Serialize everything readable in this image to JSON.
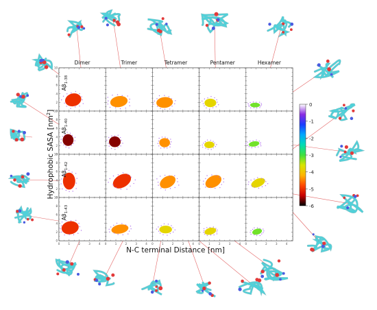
{
  "chart_data": {
    "type": "heatmap",
    "title": "",
    "xlabel": "N-C terminal Distance [nm]",
    "ylabel_main": "Hydrophobic SASA [nm",
    "ylabel_sup": "2",
    "ylabel_end": "]",
    "columns": [
      "Dimer",
      "Trimer",
      "Tetramer",
      "Pentamer",
      "Hexamer"
    ],
    "rows": [
      {
        "base": "Aβ",
        "sub": "1-38"
      },
      {
        "base": "Aβ",
        "sub": "1-40"
      },
      {
        "base": "Aβ",
        "sub": "1-42"
      },
      {
        "base": "Aβ",
        "sub": "1-43"
      }
    ],
    "x_ticks": [
      "0",
      "1",
      "2",
      "3",
      "4"
    ],
    "y_ticks": [
      "0",
      "2",
      "4",
      "6",
      "8",
      "10"
    ],
    "colorbar": {
      "ticks": [
        "0",
        "-1",
        "-2",
        "-3",
        "-4",
        "-5",
        "-6"
      ],
      "range": [
        -6,
        0
      ],
      "colors": [
        "#000000",
        "#c80000",
        "#ff4800",
        "#ffb400",
        "#d8e600",
        "#3fe03f",
        "#00dcb4",
        "#00a8ff",
        "#1a3cff",
        "#8a2be2",
        "#ffffff"
      ]
    },
    "distributions": [
      [
        {
          "cx": 1.4,
          "cy": 2.6,
          "sx": 0.85,
          "sy": 1.55,
          "rot": -15,
          "peak": -5.3
        },
        {
          "cx": 1.3,
          "cy": 2.2,
          "sx": 0.95,
          "sy": 1.4,
          "rot": -10,
          "peak": -4.9
        },
        {
          "cx": 1.2,
          "cy": 2.0,
          "sx": 0.85,
          "sy": 1.3,
          "rot": -5,
          "peak": -4.6
        },
        {
          "cx": 1.1,
          "cy": 1.9,
          "sx": 0.65,
          "sy": 1.1,
          "rot": 0,
          "peak": -4.3
        },
        {
          "cx": 0.9,
          "cy": 1.4,
          "sx": 0.55,
          "sy": 0.6,
          "rot": 0,
          "peak": -3.6
        }
      ],
      [
        {
          "cx": 0.9,
          "cy": 3.3,
          "sx": 0.55,
          "sy": 1.4,
          "rot": 0,
          "peak": -5.8
        },
        {
          "cx": 0.9,
          "cy": 2.9,
          "sx": 0.6,
          "sy": 1.3,
          "rot": 0,
          "peak": -5.9
        },
        {
          "cx": 1.2,
          "cy": 2.7,
          "sx": 0.55,
          "sy": 1.1,
          "rot": 0,
          "peak": -4.6
        },
        {
          "cx": 1.0,
          "cy": 2.2,
          "sx": 0.55,
          "sy": 0.85,
          "rot": 0,
          "peak": -4.2
        },
        {
          "cx": 0.8,
          "cy": 2.4,
          "sx": 0.6,
          "sy": 0.7,
          "rot": -10,
          "peak": -3.7
        }
      ],
      [
        {
          "cx": 1.0,
          "cy": 3.8,
          "sx": 0.65,
          "sy": 2.1,
          "rot": 0,
          "peak": -5.4
        },
        {
          "cx": 1.6,
          "cy": 3.8,
          "sx": 1.0,
          "sy": 1.5,
          "rot": -30,
          "peak": -5.2
        },
        {
          "cx": 1.5,
          "cy": 3.6,
          "sx": 0.9,
          "sy": 1.4,
          "rot": -30,
          "peak": -4.8
        },
        {
          "cx": 1.4,
          "cy": 3.7,
          "sx": 0.85,
          "sy": 1.3,
          "rot": -30,
          "peak": -4.4
        },
        {
          "cx": 1.2,
          "cy": 3.4,
          "sx": 0.75,
          "sy": 0.95,
          "rot": -25,
          "peak": -3.9
        }
      ],
      [
        {
          "cx": 1.1,
          "cy": 3.0,
          "sx": 0.85,
          "sy": 1.5,
          "rot": -10,
          "peak": -5.0
        },
        {
          "cx": 1.4,
          "cy": 2.7,
          "sx": 0.9,
          "sy": 1.1,
          "rot": -10,
          "peak": -4.7
        },
        {
          "cx": 1.3,
          "cy": 2.6,
          "sx": 0.7,
          "sy": 1.0,
          "rot": 0,
          "peak": -4.3
        },
        {
          "cx": 1.1,
          "cy": 2.2,
          "sx": 0.6,
          "sy": 0.8,
          "rot": -15,
          "peak": -3.9
        },
        {
          "cx": 1.1,
          "cy": 2.1,
          "sx": 0.55,
          "sy": 0.75,
          "rot": -15,
          "peak": -3.6
        }
      ]
    ],
    "molecule_colors": {
      "ribbon": "#4fd1d9",
      "ribbon_dark": "#1f8f9a",
      "hydrophobic": "#e23a3a",
      "charged": "#4a5be0"
    }
  }
}
